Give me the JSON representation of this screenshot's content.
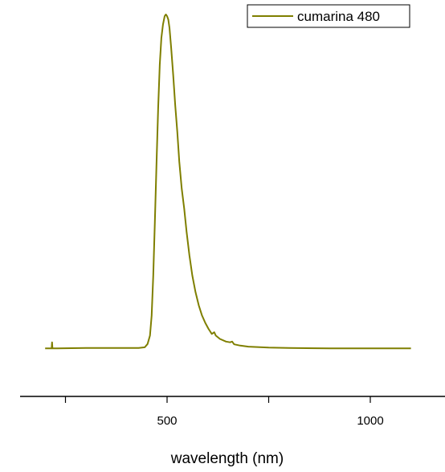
{
  "chart_data": {
    "type": "line",
    "xlabel": "wavelength (nm)",
    "ylabel": "",
    "xlim": [
      180,
      1150
    ],
    "ylim": [
      -0.15,
      1.04
    ],
    "y_axis_visible": false,
    "grid": false,
    "legend_position": "top-right",
    "x_ticks": [
      {
        "value": 250,
        "label": ""
      },
      {
        "value": 500,
        "label": "500"
      },
      {
        "value": 750,
        "label": ""
      },
      {
        "value": 1000,
        "label": "1000"
      }
    ],
    "series": [
      {
        "name": "cumarina 480",
        "color": "#7f7f00",
        "points": [
          [
            200,
            0.002
          ],
          [
            215,
            0.002
          ],
          [
            216,
            0.002
          ],
          [
            217,
            0.02
          ],
          [
            218,
            0.002
          ],
          [
            230,
            0.002
          ],
          [
            300,
            0.003
          ],
          [
            350,
            0.003
          ],
          [
            400,
            0.003
          ],
          [
            430,
            0.003
          ],
          [
            445,
            0.005
          ],
          [
            452,
            0.015
          ],
          [
            458,
            0.04
          ],
          [
            462,
            0.1
          ],
          [
            466,
            0.22
          ],
          [
            470,
            0.38
          ],
          [
            474,
            0.55
          ],
          [
            478,
            0.72
          ],
          [
            482,
            0.85
          ],
          [
            486,
            0.93
          ],
          [
            490,
            0.97
          ],
          [
            494,
            0.995
          ],
          [
            497,
            1.0
          ],
          [
            500,
            0.995
          ],
          [
            503,
            0.985
          ],
          [
            506,
            0.96
          ],
          [
            510,
            0.9
          ],
          [
            515,
            0.82
          ],
          [
            520,
            0.73
          ],
          [
            525,
            0.65
          ],
          [
            530,
            0.56
          ],
          [
            536,
            0.48
          ],
          [
            542,
            0.42
          ],
          [
            548,
            0.35
          ],
          [
            555,
            0.28
          ],
          [
            562,
            0.22
          ],
          [
            570,
            0.17
          ],
          [
            578,
            0.13
          ],
          [
            586,
            0.1
          ],
          [
            594,
            0.078
          ],
          [
            602,
            0.06
          ],
          [
            610,
            0.045
          ],
          [
            616,
            0.05
          ],
          [
            620,
            0.04
          ],
          [
            630,
            0.03
          ],
          [
            645,
            0.022
          ],
          [
            655,
            0.02
          ],
          [
            660,
            0.022
          ],
          [
            665,
            0.014
          ],
          [
            680,
            0.01
          ],
          [
            700,
            0.007
          ],
          [
            750,
            0.004
          ],
          [
            800,
            0.003
          ],
          [
            900,
            0.002
          ],
          [
            1000,
            0.002
          ],
          [
            1100,
            0.002
          ]
        ]
      }
    ]
  }
}
